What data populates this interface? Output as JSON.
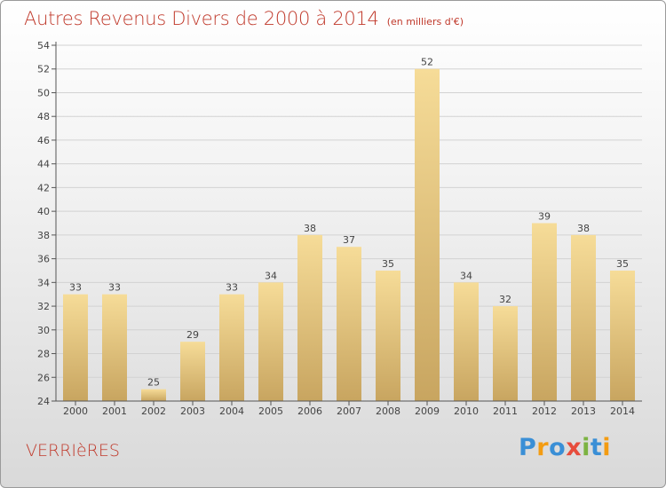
{
  "chart_data": {
    "type": "bar",
    "title": "Autres Revenus Divers de 2000 à 2014",
    "subtitle": "(en milliers d'€)",
    "categories": [
      "2000",
      "2001",
      "2002",
      "2003",
      "2004",
      "2005",
      "2006",
      "2007",
      "2008",
      "2009",
      "2010",
      "2011",
      "2012",
      "2013",
      "2014"
    ],
    "values": [
      33,
      33,
      25,
      29,
      33,
      34,
      38,
      37,
      35,
      52,
      34,
      32,
      39,
      38,
      35
    ],
    "ylim": [
      24,
      54
    ],
    "yticks": [
      24,
      26,
      28,
      30,
      32,
      34,
      36,
      38,
      40,
      42,
      44,
      46,
      48,
      50,
      52,
      54
    ],
    "xlabel": "",
    "ylabel": "",
    "grid": true,
    "data_labels": true,
    "colors": {
      "bar_light": "#f6dc98",
      "bar_dark": "#c8a560",
      "axis": "#555555",
      "grid": "#d2d2d2",
      "text": "#444444"
    }
  },
  "place_name": "VERRIèRES",
  "logo": {
    "text": "Proxiti",
    "letters": [
      {
        "ch": "P",
        "color": "#3a8fd6"
      },
      {
        "ch": "r",
        "color": "#f39c12"
      },
      {
        "ch": "o",
        "color": "#3a8fd6"
      },
      {
        "ch": "x",
        "color": "#e74c3c"
      },
      {
        "ch": "i",
        "color": "#7cb342"
      },
      {
        "ch": "t",
        "color": "#3a8fd6"
      },
      {
        "ch": "i",
        "color": "#f39c12"
      }
    ]
  }
}
